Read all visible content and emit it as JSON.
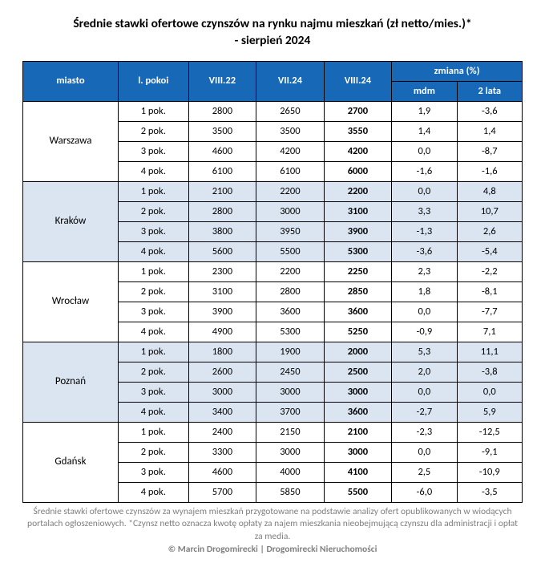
{
  "title_line1": "Średnie stawki ofertowe czynszów na rynku najmu mieszkań (zł netto/mies.)*",
  "title_line2": "- sierpień 2024",
  "headers": {
    "miasto": "miasto",
    "lpokoi": "l. pokoi",
    "v1": "VIII.22",
    "v2": "VII.24",
    "v3": "VIII.24",
    "zmiana": "zmiana (%)",
    "mdm": "mdm",
    "lata2": "2 lata"
  },
  "cities": [
    {
      "name": "Warszawa",
      "alt": false,
      "rows": [
        {
          "p": "1 pok.",
          "a": "2800",
          "b": "2650",
          "c": "2700",
          "m": "1,9",
          "y": "-3,6"
        },
        {
          "p": "2 pok.",
          "a": "3500",
          "b": "3500",
          "c": "3550",
          "m": "1,4",
          "y": "1,4"
        },
        {
          "p": "3 pok.",
          "a": "4600",
          "b": "4200",
          "c": "4200",
          "m": "0,0",
          "y": "-8,7"
        },
        {
          "p": "4 pok.",
          "a": "6100",
          "b": "6100",
          "c": "6000",
          "m": "-1,6",
          "y": "-1,6"
        }
      ]
    },
    {
      "name": "Kraków",
      "alt": true,
      "rows": [
        {
          "p": "1 pok.",
          "a": "2100",
          "b": "2200",
          "c": "2200",
          "m": "0,0",
          "y": "4,8"
        },
        {
          "p": "2 pok.",
          "a": "2800",
          "b": "3000",
          "c": "3100",
          "m": "3,3",
          "y": "10,7"
        },
        {
          "p": "3 pok.",
          "a": "3800",
          "b": "3950",
          "c": "3900",
          "m": "-1,3",
          "y": "2,6"
        },
        {
          "p": "4 pok.",
          "a": "5600",
          "b": "5500",
          "c": "5300",
          "m": "-3,6",
          "y": "-5,4"
        }
      ]
    },
    {
      "name": "Wrocław",
      "alt": false,
      "rows": [
        {
          "p": "1 pok.",
          "a": "2300",
          "b": "2200",
          "c": "2250",
          "m": "2,3",
          "y": "-2,2"
        },
        {
          "p": "2 pok.",
          "a": "3100",
          "b": "2800",
          "c": "2850",
          "m": "1,8",
          "y": "-8,1"
        },
        {
          "p": "3 pok.",
          "a": "3900",
          "b": "3600",
          "c": "3600",
          "m": "0,0",
          "y": "-7,7"
        },
        {
          "p": "4 pok.",
          "a": "4900",
          "b": "5300",
          "c": "5250",
          "m": "-0,9",
          "y": "7,1"
        }
      ]
    },
    {
      "name": "Poznań",
      "alt": true,
      "rows": [
        {
          "p": "1 pok.",
          "a": "1800",
          "b": "1900",
          "c": "2000",
          "m": "5,3",
          "y": "11,1"
        },
        {
          "p": "2 pok.",
          "a": "2600",
          "b": "2450",
          "c": "2500",
          "m": "2,0",
          "y": "-3,8"
        },
        {
          "p": "3 pok.",
          "a": "3000",
          "b": "3000",
          "c": "3000",
          "m": "0,0",
          "y": "0,0"
        },
        {
          "p": "4 pok.",
          "a": "3400",
          "b": "3700",
          "c": "3600",
          "m": "-2,7",
          "y": "5,9"
        }
      ]
    },
    {
      "name": "Gdańsk",
      "alt": false,
      "rows": [
        {
          "p": "1 pok.",
          "a": "2400",
          "b": "2150",
          "c": "2100",
          "m": "-2,3",
          "y": "-12,5"
        },
        {
          "p": "2 pok.",
          "a": "3300",
          "b": "3000",
          "c": "3000",
          "m": "0,0",
          "y": "-9,1"
        },
        {
          "p": "3 pok.",
          "a": "4600",
          "b": "4000",
          "c": "4100",
          "m": "2,5",
          "y": "-10,9"
        },
        {
          "p": "4 pok.",
          "a": "5700",
          "b": "5850",
          "c": "5500",
          "m": "-6,0",
          "y": "-3,5"
        }
      ]
    }
  ],
  "footnote": "Średnie stawki ofertowe czynszów za wynajem mieszkań przygotowane na podstawie analizy ofert opublikowanych w wiodących portalach ogłoszeniowych. *Czynsz netto oznacza kwotę opłaty za najem mieszkania nieobejmującą czynszu dla administracji i opłat za media.",
  "credit": "© Marcin Drogomirecki | Drogomirecki Nieruchomości"
}
